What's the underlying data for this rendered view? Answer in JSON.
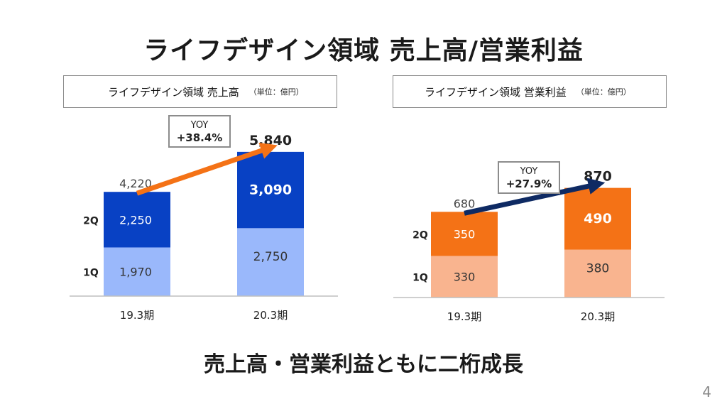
{
  "title": "ライフデザイン領域  売上高/営業利益",
  "conclusion": "売上高・営業利益ともに二桁成長",
  "page_number": "4",
  "chart_data": [
    {
      "id": "sales",
      "type": "bar",
      "stacked": true,
      "title": "ライフデザイン領域 売上高",
      "unit": "（単位：億円）",
      "categories": [
        "19.3期",
        "20.3期"
      ],
      "series": [
        {
          "name": "1Q",
          "values": [
            1970,
            2750
          ],
          "color": "#9ab8fb"
        },
        {
          "name": "2Q",
          "values": [
            2250,
            3090
          ],
          "color": "#0841c4"
        }
      ],
      "totals": [
        4220,
        5840
      ],
      "labels": {
        "totals": [
          "4,220",
          "5,840"
        ],
        "q1": [
          "1,970",
          "2,750"
        ],
        "q2": [
          "2,250",
          "3,090"
        ],
        "series_names": [
          "1Q",
          "2Q"
        ]
      },
      "yoy": {
        "label": "YOY",
        "value": "+38.4%",
        "arrow_color": "#f47216"
      },
      "ylim": [
        0,
        6900
      ]
    },
    {
      "id": "profit",
      "type": "bar",
      "stacked": true,
      "title": "ライフデザイン領域 営業利益",
      "unit": "（単位：億円）",
      "categories": [
        "19.3期",
        "20.3期"
      ],
      "series": [
        {
          "name": "1Q",
          "values": [
            330,
            380
          ],
          "color": "#f9b48f"
        },
        {
          "name": "2Q",
          "values": [
            350,
            490
          ],
          "color": "#f47216"
        }
      ],
      "totals": [
        680,
        870
      ],
      "labels": {
        "totals": [
          "680",
          "870"
        ],
        "q1": [
          "330",
          "380"
        ],
        "q2": [
          "350",
          "490"
        ],
        "series_names": [
          "1Q",
          "2Q"
        ]
      },
      "yoy": {
        "label": "YOY",
        "value": "+27.9%",
        "arrow_color": "#0e2a63"
      },
      "ylim": [
        0,
        1020
      ]
    }
  ]
}
